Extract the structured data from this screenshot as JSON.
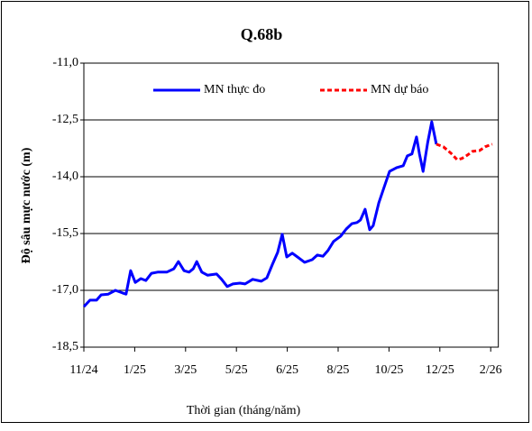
{
  "chart_data": {
    "type": "line",
    "title": "Q.68b",
    "xlabel": "Thời gian (tháng/năm)",
    "ylabel": "Độ sâu mực nước (m)",
    "xlim": [
      0,
      8.15
    ],
    "xticks": [
      {
        "value": 0,
        "label": "11/24"
      },
      {
        "value": 1,
        "label": "1/25"
      },
      {
        "value": 2,
        "label": "3/25"
      },
      {
        "value": 3,
        "label": "5/25"
      },
      {
        "value": 4,
        "label": "6/25"
      },
      {
        "value": 5,
        "label": "8/25"
      },
      {
        "value": 6,
        "label": "10/25"
      },
      {
        "value": 7,
        "label": "12/25"
      },
      {
        "value": 8,
        "label": "2/26"
      }
    ],
    "ylim": [
      -18.5,
      -11
    ],
    "yticks": [
      {
        "value": -11,
        "label": "-11,0"
      },
      {
        "value": -12.5,
        "label": "-12,5"
      },
      {
        "value": -14,
        "label": "-14,0"
      },
      {
        "value": -15.5,
        "label": "-15,5"
      },
      {
        "value": -17,
        "label": "-17,0"
      },
      {
        "value": -18.5,
        "label": "-18,5"
      }
    ],
    "grid": true,
    "legend": "top",
    "series": [
      {
        "name": "MN thực đo",
        "color": "#0000ff",
        "dash": false,
        "x": [
          0,
          0.12,
          0.25,
          0.34,
          0.48,
          0.62,
          0.76,
          0.83,
          0.92,
          1.01,
          1.12,
          1.22,
          1.33,
          1.45,
          1.63,
          1.77,
          1.86,
          1.97,
          2.07,
          2.15,
          2.22,
          2.32,
          2.43,
          2.61,
          2.71,
          2.82,
          2.93,
          3.07,
          3.17,
          3.32,
          3.49,
          3.6,
          3.71,
          3.81,
          3.9,
          3.99,
          4.1,
          4.2,
          4.34,
          4.49,
          4.59,
          4.7,
          4.8,
          4.91,
          5.05,
          5.16,
          5.27,
          5.37,
          5.44,
          5.53,
          5.62,
          5.69,
          5.8,
          5.9,
          6.01,
          6.15,
          6.28,
          6.36,
          6.45,
          6.54,
          6.6,
          6.67,
          6.76,
          6.84,
          6.93
        ],
        "values": [
          -17.43,
          -17.26,
          -17.26,
          -17.12,
          -17.1,
          -17.0,
          -17.07,
          -17.1,
          -16.48,
          -16.79,
          -16.69,
          -16.74,
          -16.55,
          -16.52,
          -16.52,
          -16.43,
          -16.24,
          -16.48,
          -16.52,
          -16.43,
          -16.24,
          -16.52,
          -16.6,
          -16.57,
          -16.71,
          -16.9,
          -16.83,
          -16.81,
          -16.83,
          -16.71,
          -16.76,
          -16.67,
          -16.31,
          -16.0,
          -15.52,
          -16.12,
          -16.02,
          -16.12,
          -16.26,
          -16.19,
          -16.07,
          -16.1,
          -15.95,
          -15.71,
          -15.57,
          -15.38,
          -15.24,
          -15.21,
          -15.14,
          -14.86,
          -15.4,
          -15.29,
          -14.69,
          -14.29,
          -13.86,
          -13.76,
          -13.71,
          -13.45,
          -13.4,
          -12.95,
          -13.4,
          -13.86,
          -13.1,
          -12.55,
          -13.14
        ]
      },
      {
        "name": "MN dự báo",
        "color": "#ff0000",
        "dash": true,
        "x": [
          6.93,
          7.07,
          7.22,
          7.34,
          7.43,
          7.54,
          7.64,
          7.78,
          7.89,
          8.03
        ],
        "values": [
          -13.14,
          -13.21,
          -13.38,
          -13.55,
          -13.52,
          -13.43,
          -13.33,
          -13.31,
          -13.21,
          -13.14
        ]
      }
    ]
  }
}
